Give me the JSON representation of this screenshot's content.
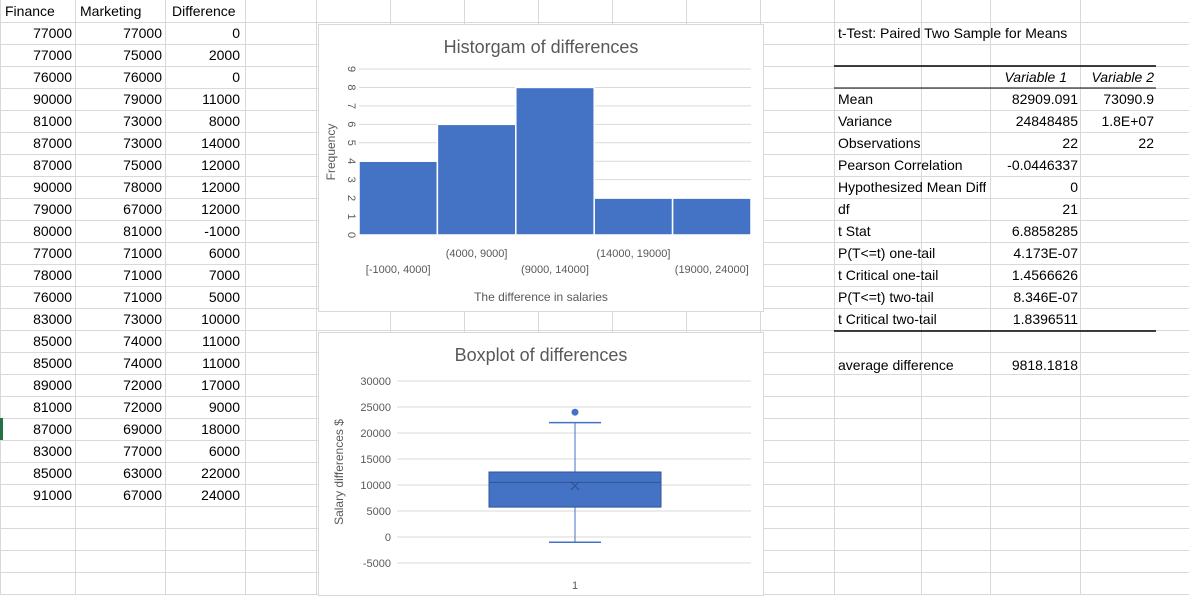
{
  "sheet": {
    "headers": [
      "Finance",
      "Marketing",
      "Difference"
    ],
    "rows": [
      [
        "77000",
        "77000",
        "0"
      ],
      [
        "77000",
        "75000",
        "2000"
      ],
      [
        "76000",
        "76000",
        "0"
      ],
      [
        "90000",
        "79000",
        "11000"
      ],
      [
        "81000",
        "73000",
        "8000"
      ],
      [
        "87000",
        "73000",
        "14000"
      ],
      [
        "87000",
        "75000",
        "12000"
      ],
      [
        "90000",
        "78000",
        "12000"
      ],
      [
        "79000",
        "67000",
        "12000"
      ],
      [
        "80000",
        "81000",
        "-1000"
      ],
      [
        "77000",
        "71000",
        "6000"
      ],
      [
        "78000",
        "71000",
        "7000"
      ],
      [
        "76000",
        "71000",
        "5000"
      ],
      [
        "83000",
        "73000",
        "10000"
      ],
      [
        "85000",
        "74000",
        "11000"
      ],
      [
        "85000",
        "74000",
        "11000"
      ],
      [
        "89000",
        "72000",
        "17000"
      ],
      [
        "81000",
        "72000",
        "9000"
      ],
      [
        "87000",
        "69000",
        "18000"
      ],
      [
        "83000",
        "77000",
        "6000"
      ],
      [
        "85000",
        "63000",
        "22000"
      ],
      [
        "91000",
        "67000",
        "24000"
      ]
    ]
  },
  "ttest": {
    "title": "t-Test: Paired Two Sample for Means",
    "col1": "Variable 1",
    "col2": "Variable 2",
    "rows": [
      {
        "label": "Mean",
        "v1": "82909.091",
        "v2": "73090.9"
      },
      {
        "label": "Variance",
        "v1": "24848485",
        "v2": "1.8E+07"
      },
      {
        "label": "Observations",
        "v1": "22",
        "v2": "22"
      },
      {
        "label": "Pearson Correlation",
        "v1": "-0.0446337",
        "v2": ""
      },
      {
        "label": "Hypothesized Mean Difference",
        "v1": "0",
        "v2": ""
      },
      {
        "label": "df",
        "v1": "21",
        "v2": ""
      },
      {
        "label": "t Stat",
        "v1": "6.8858285",
        "v2": ""
      },
      {
        "label": "P(T<=t) one-tail",
        "v1": "4.173E-07",
        "v2": ""
      },
      {
        "label": "t Critical one-tail",
        "v1": "1.4566626",
        "v2": ""
      },
      {
        "label": "P(T<=t) two-tail",
        "v1": "8.346E-07",
        "v2": ""
      },
      {
        "label": "t Critical two-tail",
        "v1": "1.8396511",
        "v2": ""
      }
    ],
    "avg_label": "average difference",
    "avg_value": "9818.1818"
  },
  "colors": {
    "bar": "#4472c4",
    "grid": "#d9d9d9",
    "axis_text": "#595959",
    "selection": "#217346"
  },
  "chart_data": [
    {
      "type": "bar",
      "title": "Historgam of differences",
      "xlabel": "The difference in salaries",
      "ylabel": "Frequency",
      "categories": [
        "[-1000, 4000]",
        "(4000, 9000]",
        "(9000, 14000]",
        "(14000, 19000]",
        "(19000, 24000]"
      ],
      "values": [
        4,
        6,
        8,
        2,
        2
      ],
      "ylim": [
        0,
        9
      ],
      "yticks": [
        "0",
        "1",
        "2",
        "3",
        "4",
        "5",
        "6",
        "7",
        "8",
        "9"
      ]
    },
    {
      "type": "boxplot",
      "title": "Boxplot of differences",
      "ylabel": "Salary differences $",
      "category": "1",
      "min": -1000,
      "q1": 5750,
      "median": 10500,
      "mean": 9818.18,
      "q3": 12500,
      "whisker_high": 22000,
      "outliers": [
        24000
      ],
      "ylim": [
        -5000,
        30000
      ],
      "yticks": [
        "-5000",
        "0",
        "5000",
        "10000",
        "15000",
        "20000",
        "25000",
        "30000"
      ]
    }
  ]
}
